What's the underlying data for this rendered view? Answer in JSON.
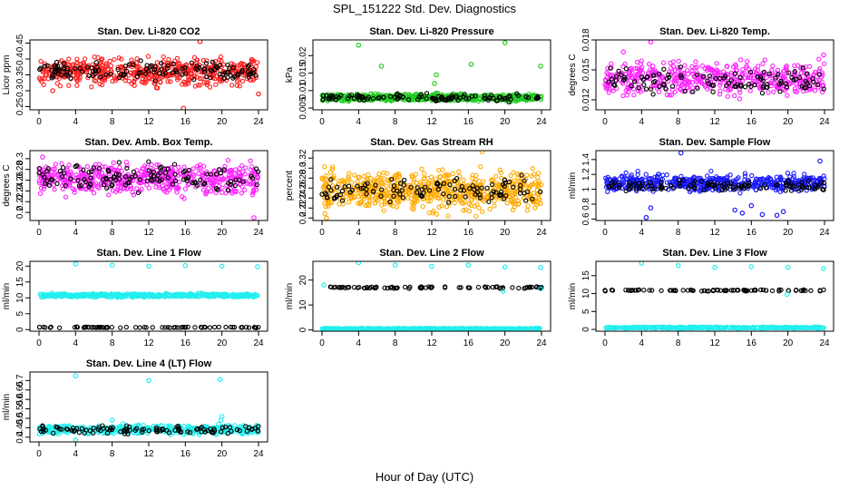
{
  "title": "SPL_151222  Std. Dev. Diagnostics",
  "xlabel": "Hour of Day (UTC)",
  "colors": {
    "red": "#ff2020",
    "green": "#22cc22",
    "magenta": "#ff22ff",
    "orange": "#ffaa00",
    "blue": "#1a1aff",
    "cyan": "#22eeee",
    "black": "#000000"
  },
  "chart_data": [
    {
      "type": "scatter",
      "title": "Stan. Dev. Li-820 CO2",
      "ylabel": "Licor ppm",
      "xlim": [
        0,
        24
      ],
      "ylim": [
        0.24,
        0.46
      ],
      "xticks": [
        0,
        4,
        8,
        12,
        16,
        20,
        24
      ],
      "yticks": [
        0.25,
        0.3,
        0.35,
        0.4,
        0.45
      ],
      "color": "red",
      "series": [
        {
          "color": "red",
          "band": [
            0.3,
            0.42
          ],
          "count": 520
        },
        {
          "color": "black",
          "band": [
            0.32,
            0.4
          ],
          "count": 130
        }
      ],
      "outliers": [
        {
          "x": 17.6,
          "y": 0.455
        },
        {
          "x": 15.8,
          "y": 0.245
        },
        {
          "x": 24.0,
          "y": 0.29
        },
        {
          "x": 1.5,
          "y": 0.3
        }
      ]
    },
    {
      "type": "scatter",
      "title": "Stan. Dev. Li-820 Pressure",
      "ylabel": "kPa",
      "xlim": [
        0,
        24
      ],
      "ylim": [
        0.0045,
        0.0245
      ],
      "xticks": [
        0,
        4,
        8,
        12,
        16,
        20,
        24
      ],
      "yticks": [
        0.005,
        0.01,
        0.015,
        0.02
      ],
      "color": "green",
      "series": [
        {
          "color": "green",
          "band": [
            0.0065,
            0.0095
          ],
          "count": 620
        },
        {
          "color": "black",
          "band": [
            0.0065,
            0.0095
          ],
          "count": 120
        }
      ],
      "outliers": [
        {
          "x": 4.0,
          "y": 0.023
        },
        {
          "x": 6.5,
          "y": 0.017
        },
        {
          "x": 12.5,
          "y": 0.0145
        },
        {
          "x": 16.3,
          "y": 0.0175
        },
        {
          "x": 20.0,
          "y": 0.0237
        },
        {
          "x": 23.9,
          "y": 0.017
        },
        {
          "x": 12.3,
          "y": 0.012
        }
      ]
    },
    {
      "type": "scatter",
      "title": "Stan. Dev. Li-820 Temp.",
      "ylabel": "degrees C",
      "xlim": [
        0,
        24
      ],
      "ylim": [
        0.011,
        0.018
      ],
      "xticks": [
        0,
        4,
        8,
        12,
        16,
        20,
        24
      ],
      "yticks": [
        0.012,
        0.015,
        0.018
      ],
      "color": "magenta",
      "series": [
        {
          "color": "magenta",
          "band": [
            0.0118,
            0.0165
          ],
          "count": 480
        },
        {
          "color": "black",
          "band": [
            0.0122,
            0.0155
          ],
          "count": 110
        }
      ],
      "outliers": [
        {
          "x": 5.0,
          "y": 0.0178
        },
        {
          "x": 2.0,
          "y": 0.0168
        },
        {
          "x": 23.9,
          "y": 0.0165
        }
      ]
    },
    {
      "type": "scatter",
      "title": "Stan. Dev. Amb. Box Temp.",
      "ylabel": "degrees C",
      "xlim": [
        0,
        24
      ],
      "ylim": [
        0.185,
        0.315
      ],
      "xticks": [
        0,
        4,
        8,
        12,
        16,
        20,
        24
      ],
      "yticks": [
        0.2,
        0.22,
        0.24,
        0.26,
        0.28,
        0.3
      ],
      "color": "magenta",
      "series": [
        {
          "color": "magenta",
          "band": [
            0.22,
            0.305
          ],
          "count": 520
        },
        {
          "color": "black",
          "band": [
            0.23,
            0.3
          ],
          "count": 120
        }
      ],
      "outliers": [
        {
          "x": 23.5,
          "y": 0.19
        },
        {
          "x": 0.4,
          "y": 0.303
        }
      ]
    },
    {
      "type": "scatter",
      "title": "Stan. Dev. Gas Stream RH",
      "ylabel": "percent",
      "xlim": [
        0,
        24
      ],
      "ylim": [
        0.195,
        0.335
      ],
      "xticks": [
        0,
        4,
        8,
        12,
        16,
        20,
        24
      ],
      "yticks": [
        0.2,
        0.22,
        0.24,
        0.26,
        0.28,
        0.3,
        0.32
      ],
      "color": "orange",
      "series": [
        {
          "color": "orange",
          "band": [
            0.2,
            0.31
          ],
          "count": 650
        },
        {
          "color": "black",
          "band": [
            0.22,
            0.29
          ],
          "count": 110
        }
      ],
      "outliers": [
        {
          "x": 17.5,
          "y": 0.333
        },
        {
          "x": 0.5,
          "y": 0.2
        }
      ]
    },
    {
      "type": "scatter",
      "title": "Stan. Dev. Sample Flow",
      "ylabel": "ml/min",
      "xlim": [
        0,
        24
      ],
      "ylim": [
        0.58,
        1.52
      ],
      "xticks": [
        0,
        4,
        8,
        12,
        16,
        20,
        24
      ],
      "yticks": [
        0.6,
        0.8,
        1.0,
        1.2,
        1.4
      ],
      "color": "blue",
      "series": [
        {
          "color": "blue",
          "band": [
            0.92,
            1.25
          ],
          "count": 520
        },
        {
          "color": "black",
          "band": [
            0.95,
            1.15
          ],
          "count": 110
        }
      ],
      "outliers": [
        {
          "x": 8.3,
          "y": 1.49
        },
        {
          "x": 4.5,
          "y": 0.62
        },
        {
          "x": 14.2,
          "y": 0.72
        },
        {
          "x": 15.0,
          "y": 0.68
        },
        {
          "x": 17.2,
          "y": 0.66
        },
        {
          "x": 18.8,
          "y": 0.65
        },
        {
          "x": 19.5,
          "y": 0.7
        },
        {
          "x": 5.0,
          "y": 0.75
        },
        {
          "x": 16.0,
          "y": 0.78
        },
        {
          "x": 23.5,
          "y": 1.38
        }
      ]
    },
    {
      "type": "scatter",
      "title": "Stan. Dev. Line 1 Flow",
      "ylabel": "ml/min",
      "xlim": [
        0,
        24
      ],
      "ylim": [
        -0.5,
        21.5
      ],
      "xticks": [
        0,
        4,
        8,
        12,
        16,
        20,
        24
      ],
      "yticks": [
        0,
        5,
        10,
        15,
        20
      ],
      "color": "cyan",
      "series": [
        {
          "color": "cyan",
          "band": [
            10.0,
            11.6
          ],
          "count": 480
        },
        {
          "color": "black",
          "band": [
            0.5,
            0.9
          ],
          "count": 70
        }
      ],
      "outliers": [
        {
          "x": 4.0,
          "y": 20.7
        },
        {
          "x": 8.0,
          "y": 20.3
        },
        {
          "x": 12.0,
          "y": 20.0
        },
        {
          "x": 16.0,
          "y": 20.2
        },
        {
          "x": 20.0,
          "y": 20.0
        },
        {
          "x": 23.9,
          "y": 19.8
        }
      ]
    },
    {
      "type": "scatter",
      "title": "Stan. Dev. Line 2 Flow",
      "ylabel": "ml/min",
      "xlim": [
        0,
        24
      ],
      "ylim": [
        -0.5,
        27.5
      ],
      "xticks": [
        0,
        4,
        8,
        12,
        16,
        20,
        24
      ],
      "yticks": [
        0,
        10,
        20
      ],
      "color": "cyan",
      "series": [
        {
          "color": "cyan",
          "band": [
            0.2,
            0.8
          ],
          "count": 420
        },
        {
          "color": "black",
          "band": [
            16.4,
            17.6
          ],
          "count": 80
        }
      ],
      "outliers": [
        {
          "x": 4.0,
          "y": 27.0
        },
        {
          "x": 8.0,
          "y": 26.0
        },
        {
          "x": 12.0,
          "y": 25.5
        },
        {
          "x": 16.0,
          "y": 26.0
        },
        {
          "x": 20.0,
          "y": 25.2
        },
        {
          "x": 23.9,
          "y": 25.0
        },
        {
          "x": 0.2,
          "y": 18.0
        },
        {
          "x": 23.9,
          "y": 16.5
        },
        {
          "x": 19.8,
          "y": 15.5
        }
      ]
    },
    {
      "type": "scatter",
      "title": "Stan. Dev. Line 3 Flow",
      "ylabel": "ml/min",
      "xlim": [
        0,
        24
      ],
      "ylim": [
        -0.5,
        19
      ],
      "xticks": [
        0,
        4,
        8,
        12,
        16,
        20,
        24
      ],
      "yticks": [
        0,
        5,
        10,
        15
      ],
      "color": "cyan",
      "series": [
        {
          "color": "cyan",
          "band": [
            0.2,
            0.8
          ],
          "count": 420
        },
        {
          "color": "black",
          "band": [
            10.6,
            11.2
          ],
          "count": 80
        }
      ],
      "outliers": [
        {
          "x": 4.0,
          "y": 18.5
        },
        {
          "x": 8.0,
          "y": 17.8
        },
        {
          "x": 12.0,
          "y": 17.3
        },
        {
          "x": 16.0,
          "y": 17.5
        },
        {
          "x": 20.0,
          "y": 17.3
        },
        {
          "x": 23.9,
          "y": 17.0
        },
        {
          "x": 19.9,
          "y": 9.8
        }
      ]
    },
    {
      "type": "scatter",
      "title": "Stan. Dev. Line 4 (LT) Flow",
      "ylabel": "ml/min",
      "xlim": [
        0,
        24
      ],
      "ylim": [
        0.375,
        0.745
      ],
      "xticks": [
        0,
        4,
        8,
        12,
        16,
        20,
        24
      ],
      "yticks": [
        0.4,
        0.45,
        0.5,
        0.55,
        0.6,
        0.65,
        0.7
      ],
      "color": "cyan",
      "series": [
        {
          "color": "cyan",
          "band": [
            0.405,
            0.475
          ],
          "count": 420
        },
        {
          "color": "black",
          "band": [
            0.41,
            0.47
          ],
          "count": 110
        }
      ],
      "outliers": [
        {
          "x": 4.0,
          "y": 0.725
        },
        {
          "x": 12.0,
          "y": 0.7
        },
        {
          "x": 19.8,
          "y": 0.705
        },
        {
          "x": 4.0,
          "y": 0.385
        },
        {
          "x": 19.9,
          "y": 0.49
        },
        {
          "x": 20.0,
          "y": 0.51
        },
        {
          "x": 8.0,
          "y": 0.49
        }
      ]
    }
  ]
}
